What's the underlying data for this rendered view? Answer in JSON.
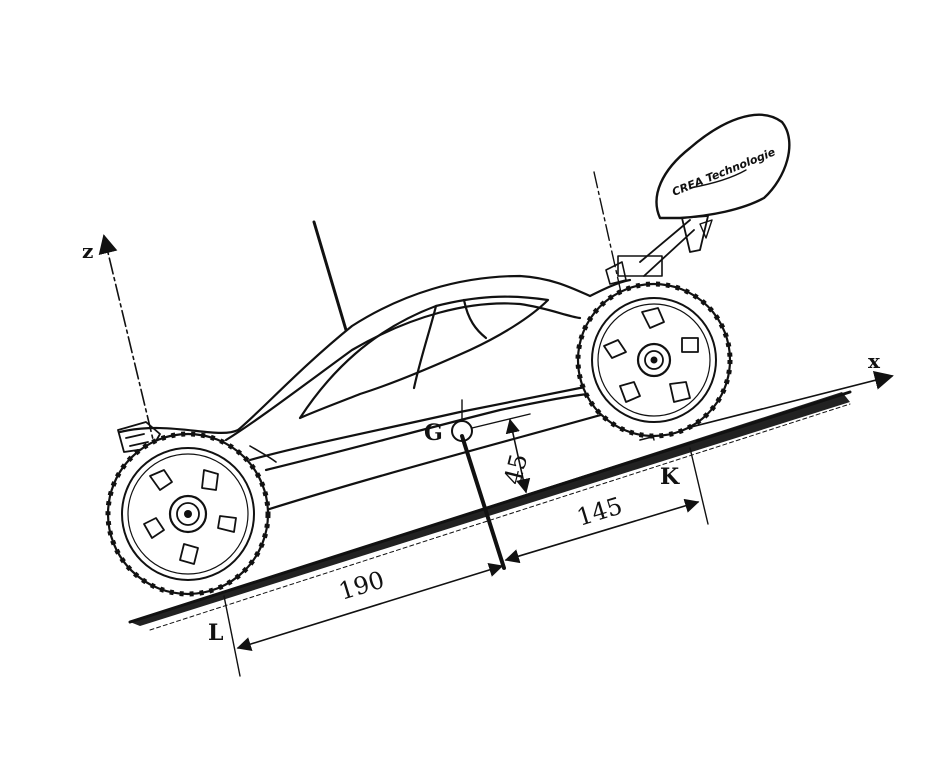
{
  "labels": {
    "axis_x": "x",
    "axis_z": "z",
    "center_of_gravity": "G",
    "contact_front": "K",
    "contact_rear": "L"
  },
  "dimensions": {
    "rear_to_g": "190",
    "g_to_front": "145",
    "g_height": "45"
  },
  "wing_logo": "CREA Technologie"
}
